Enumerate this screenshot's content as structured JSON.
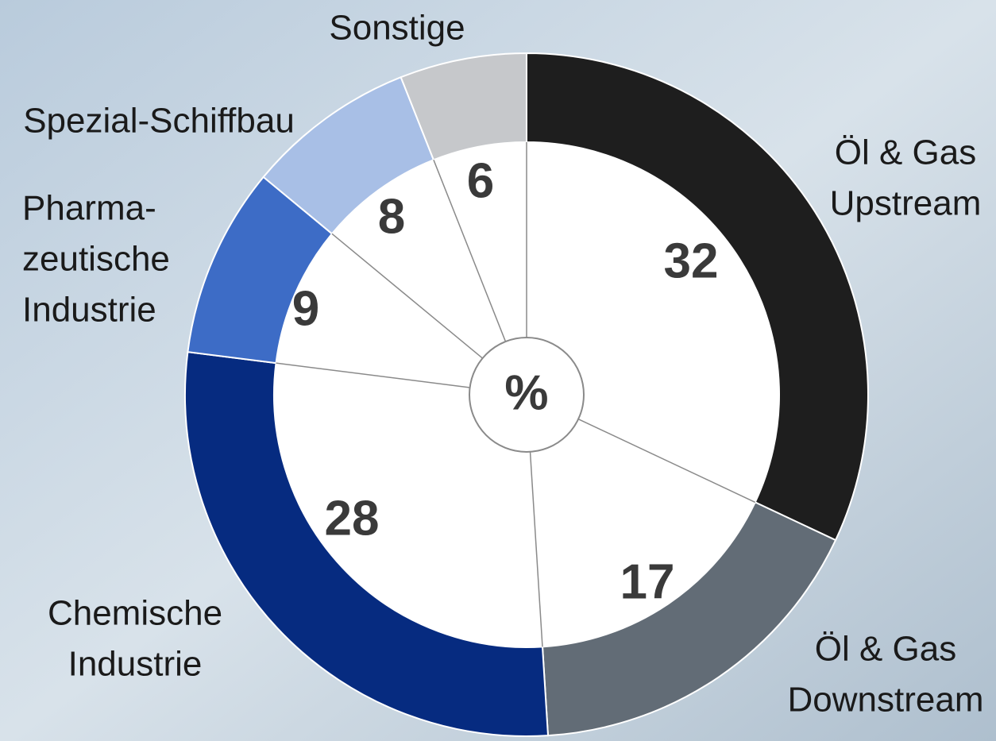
{
  "chart_data": {
    "type": "donut",
    "center_label": "%",
    "categories": [
      [
        "Öl & Gas",
        "Upstream"
      ],
      [
        "Öl & Gas",
        "Downstream"
      ],
      [
        "Chemische",
        "Industrie"
      ],
      [
        "Pharma-",
        "zeutische",
        "Industrie"
      ],
      [
        "Spezial-Schiffbau"
      ],
      [
        "Sonstige"
      ]
    ],
    "values": [
      32,
      17,
      28,
      9,
      8,
      6
    ],
    "colors": [
      "#1e1e1e",
      "#626c76",
      "#062b80",
      "#3d6cc6",
      "#a8bfe6",
      "#c6c8cb"
    ]
  }
}
